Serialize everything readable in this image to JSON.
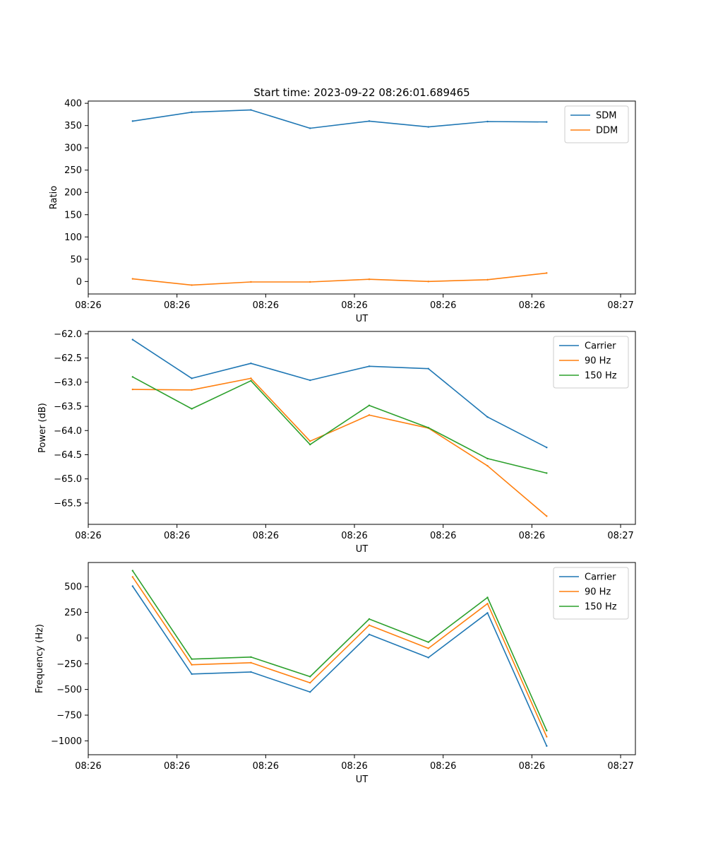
{
  "figure_title": "Start time: 2023-09-22 08:26:01.689465",
  "chart_data": [
    {
      "type": "line",
      "title": "Start time: 2023-09-22 08:26:01.689465",
      "xlabel": "UT",
      "ylabel": "Ratio",
      "x": [
        0,
        1,
        2,
        3,
        4,
        5,
        6,
        7
      ],
      "xlim": [
        -0.75,
        8.5
      ],
      "xticks": [
        -0.75,
        0.75,
        2.25,
        3.75,
        5.25,
        6.75,
        8.25
      ],
      "xtick_labels": [
        "08:26",
        "08:26",
        "08:26",
        "08:26",
        "08:26",
        "08:26",
        "08:27"
      ],
      "ylim": [
        -28,
        405
      ],
      "yticks": [
        0,
        50,
        100,
        150,
        200,
        250,
        300,
        350,
        400
      ],
      "ytick_labels": [
        "0",
        "50",
        "100",
        "150",
        "200",
        "250",
        "300",
        "350",
        "400"
      ],
      "grid": false,
      "legend_position": "top-right",
      "series": [
        {
          "name": "SDM",
          "color": "#1f77b4",
          "values": [
            360,
            380,
            385,
            344,
            360,
            347,
            359,
            358
          ]
        },
        {
          "name": "DDM",
          "color": "#ff7f0e",
          "values": [
            6,
            -8,
            -1,
            -1,
            5,
            0,
            4,
            19
          ]
        }
      ]
    },
    {
      "type": "line",
      "title": "",
      "xlabel": "UT",
      "ylabel": "Power (dB)",
      "x": [
        0,
        1,
        2,
        3,
        4,
        5,
        6,
        7
      ],
      "xlim": [
        -0.75,
        8.5
      ],
      "xticks": [
        -0.75,
        0.75,
        2.25,
        3.75,
        5.25,
        6.75,
        8.25
      ],
      "xtick_labels": [
        "08:26",
        "08:26",
        "08:26",
        "08:26",
        "08:26",
        "08:26",
        "08:27"
      ],
      "ylim": [
        -65.94,
        -61.95
      ],
      "yticks": [
        -62.0,
        -62.5,
        -63.0,
        -63.5,
        -64.0,
        -64.5,
        -65.0,
        -65.5
      ],
      "ytick_labels": [
        "−62.0",
        "−62.5",
        "−63.0",
        "−63.5",
        "−64.0",
        "−64.5",
        "−65.0",
        "−65.5"
      ],
      "grid": false,
      "legend_position": "top-right",
      "series": [
        {
          "name": "Carrier",
          "color": "#1f77b4",
          "values": [
            -62.12,
            -62.92,
            -62.61,
            -62.96,
            -62.67,
            -62.72,
            -63.72,
            -64.35
          ]
        },
        {
          "name": "90 Hz",
          "color": "#ff7f0e",
          "values": [
            -63.15,
            -63.16,
            -62.92,
            -64.22,
            -63.68,
            -63.95,
            -64.73,
            -65.77
          ]
        },
        {
          "name": "150 Hz",
          "color": "#2ca02c",
          "values": [
            -62.89,
            -63.55,
            -62.97,
            -64.29,
            -63.48,
            -63.94,
            -64.58,
            -64.88
          ]
        }
      ]
    },
    {
      "type": "line",
      "title": "",
      "xlabel": "UT",
      "ylabel": "Frequency (Hz)",
      "x": [
        0,
        1,
        2,
        3,
        4,
        5,
        6,
        7
      ],
      "xlim": [
        -0.75,
        8.5
      ],
      "xticks": [
        -0.75,
        0.75,
        2.25,
        3.75,
        5.25,
        6.75,
        8.25
      ],
      "xtick_labels": [
        "08:26",
        "08:26",
        "08:26",
        "08:26",
        "08:26",
        "08:26",
        "08:27"
      ],
      "ylim": [
        -1135,
        735
      ],
      "yticks": [
        500,
        250,
        0,
        -250,
        -500,
        -750,
        -1000
      ],
      "ytick_labels": [
        "500",
        "250",
        "0",
        "−250",
        "−500",
        "−750",
        "−1000"
      ],
      "grid": false,
      "legend_position": "top-right",
      "series": [
        {
          "name": "Carrier",
          "color": "#1f77b4",
          "values": [
            505,
            -350,
            -330,
            -525,
            35,
            -190,
            245,
            -1050
          ]
        },
        {
          "name": "90 Hz",
          "color": "#ff7f0e",
          "values": [
            595,
            -260,
            -240,
            -435,
            125,
            -100,
            335,
            -960
          ]
        },
        {
          "name": "150 Hz",
          "color": "#2ca02c",
          "values": [
            655,
            -205,
            -185,
            -375,
            185,
            -40,
            395,
            -900
          ]
        }
      ]
    }
  ]
}
